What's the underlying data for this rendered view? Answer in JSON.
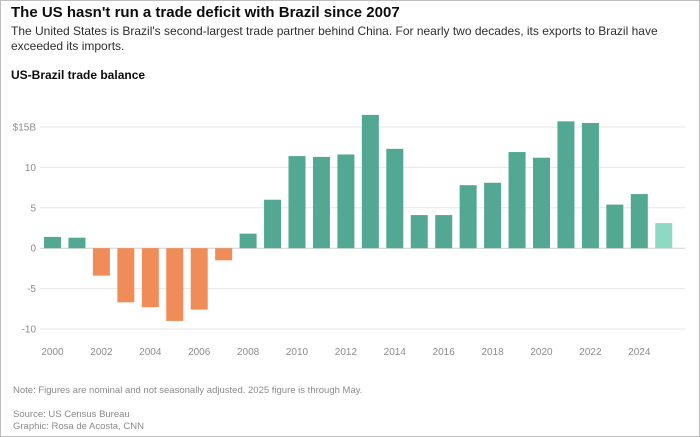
{
  "chart_data": {
    "type": "bar",
    "title": "The US hasn't run a trade deficit with Brazil since 2007",
    "subtitle": "The United States is Brazil's second-largest trade partner behind China. For nearly two decades, its exports to Brazil have exceeded its imports.",
    "chart_heading": "US-Brazil trade balance",
    "xlabel": "",
    "ylabel": "",
    "ylim": [
      -10,
      15
    ],
    "y_ticks": [
      15,
      10,
      5,
      0,
      -5,
      -10
    ],
    "y_tick_labels": [
      "$15B",
      "10",
      "5",
      "0",
      "-5",
      "-10"
    ],
    "x_tick_labels": [
      "2000",
      "2002",
      "2004",
      "2006",
      "2008",
      "2010",
      "2012",
      "2014",
      "2016",
      "2018",
      "2020",
      "2022",
      "2024"
    ],
    "grid": true,
    "categories": [
      "2000",
      "2001",
      "2002",
      "2003",
      "2004",
      "2005",
      "2006",
      "2007",
      "2008",
      "2009",
      "2010",
      "2011",
      "2012",
      "2013",
      "2014",
      "2015",
      "2016",
      "2017",
      "2018",
      "2019",
      "2020",
      "2021",
      "2022",
      "2023",
      "2024",
      "2025"
    ],
    "values": [
      1.4,
      1.3,
      -3.4,
      -6.7,
      -7.3,
      -9.0,
      -7.6,
      -1.5,
      1.8,
      6.0,
      11.4,
      11.3,
      11.6,
      16.5,
      12.3,
      4.1,
      4.1,
      7.8,
      8.1,
      11.9,
      11.2,
      15.7,
      15.5,
      5.4,
      6.7,
      3.1
    ],
    "colors": {
      "surplus": "#52a892",
      "deficit": "#f08c57",
      "partial": "#8ed9c4",
      "grid": "#e6e6e6",
      "zero_line": "#cfcfcf"
    },
    "note": "Note: Figures are nominal and not seasonally adjusted. 2025 figure is through May.",
    "source": "Source: US Census Bureau",
    "credit": "Graphic: Rosa de Acosta, CNN"
  }
}
